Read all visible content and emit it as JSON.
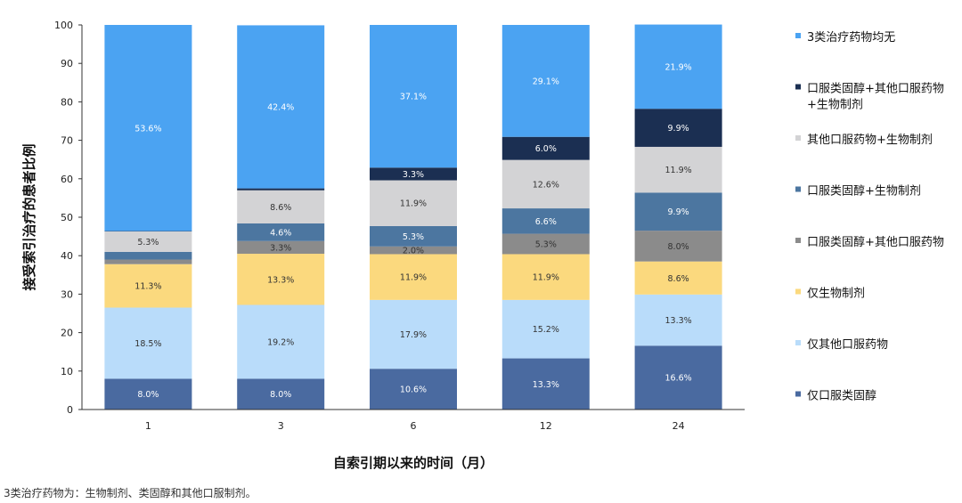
{
  "chart_data": {
    "type": "bar",
    "stacked": true,
    "categories": [
      "1",
      "3",
      "6",
      "12",
      "24"
    ],
    "xlabel": "自索引期以来的时间（月）",
    "ylabel": "接受索引治疗的患者比例",
    "ylim": [
      0,
      100
    ],
    "yticks": [
      0,
      10,
      20,
      30,
      40,
      50,
      60,
      70,
      80,
      90,
      100
    ],
    "legend_position": "right",
    "series": [
      {
        "name": "仅口服类固醇",
        "color": "#4a6aa0",
        "label_color": "#ffffff",
        "values": [
          8.0,
          8.0,
          10.6,
          13.3,
          16.6
        ],
        "labels": [
          "8.0%",
          "8.0%",
          "10.6%",
          "13.3%",
          "16.6%"
        ]
      },
      {
        "name": "仅其他口服药物",
        "color": "#b9dcfa",
        "label_color": "#333333",
        "values": [
          18.5,
          19.2,
          17.9,
          15.2,
          13.3
        ],
        "labels": [
          "18.5%",
          "19.2%",
          "17.9%",
          "15.2%",
          "13.3%"
        ]
      },
      {
        "name": "仅生物制剂",
        "color": "#fbd97e",
        "label_color": "#333333",
        "values": [
          11.3,
          13.3,
          11.9,
          11.9,
          8.6
        ],
        "labels": [
          "11.3%",
          "13.3%",
          "11.9%",
          "11.9%",
          "8.6%"
        ]
      },
      {
        "name": "口服类固醇+其他口服药物",
        "color": "#8b8b8b",
        "label_color": "#333333",
        "values": [
          1.2,
          3.3,
          2.0,
          5.3,
          8.0
        ],
        "labels": [
          "",
          "3.3%",
          "2.0%",
          "5.3%",
          "8.0%"
        ]
      },
      {
        "name": "口服类固醇+生物制剂",
        "color": "#4c76a0",
        "label_color": "#ffffff",
        "values": [
          2.0,
          4.6,
          5.3,
          6.6,
          9.9
        ],
        "labels": [
          "",
          "4.6%",
          "5.3%",
          "6.6%",
          "9.9%"
        ]
      },
      {
        "name": "其他口服药物+生物制剂",
        "color": "#d3d3d5",
        "label_color": "#333333",
        "values": [
          5.3,
          8.6,
          11.9,
          12.6,
          11.9
        ],
        "labels": [
          "5.3%",
          "8.6%",
          "11.9%",
          "12.6%",
          "11.9%"
        ]
      },
      {
        "name": "口服类固醇+其他口服药物\n+生物制剂",
        "color": "#1b2f52",
        "label_color": "#ffffff",
        "values": [
          0.1,
          0.5,
          3.3,
          6.0,
          9.9
        ],
        "labels": [
          "",
          "",
          "3.3%",
          "6.0%",
          "9.9%"
        ]
      },
      {
        "name": "3类治疗药物均无",
        "color": "#4ba3f2",
        "label_color": "#ffffff",
        "values": [
          53.6,
          42.4,
          37.1,
          29.1,
          21.9
        ],
        "labels": [
          "53.6%",
          "42.4%",
          "37.1%",
          "29.1%",
          "21.9%"
        ]
      }
    ],
    "legend_order": [
      7,
      6,
      5,
      4,
      3,
      2,
      1,
      0
    ]
  },
  "footnote": "3类治疗药物为：生物制剂、类固醇和其他口服制剂。"
}
